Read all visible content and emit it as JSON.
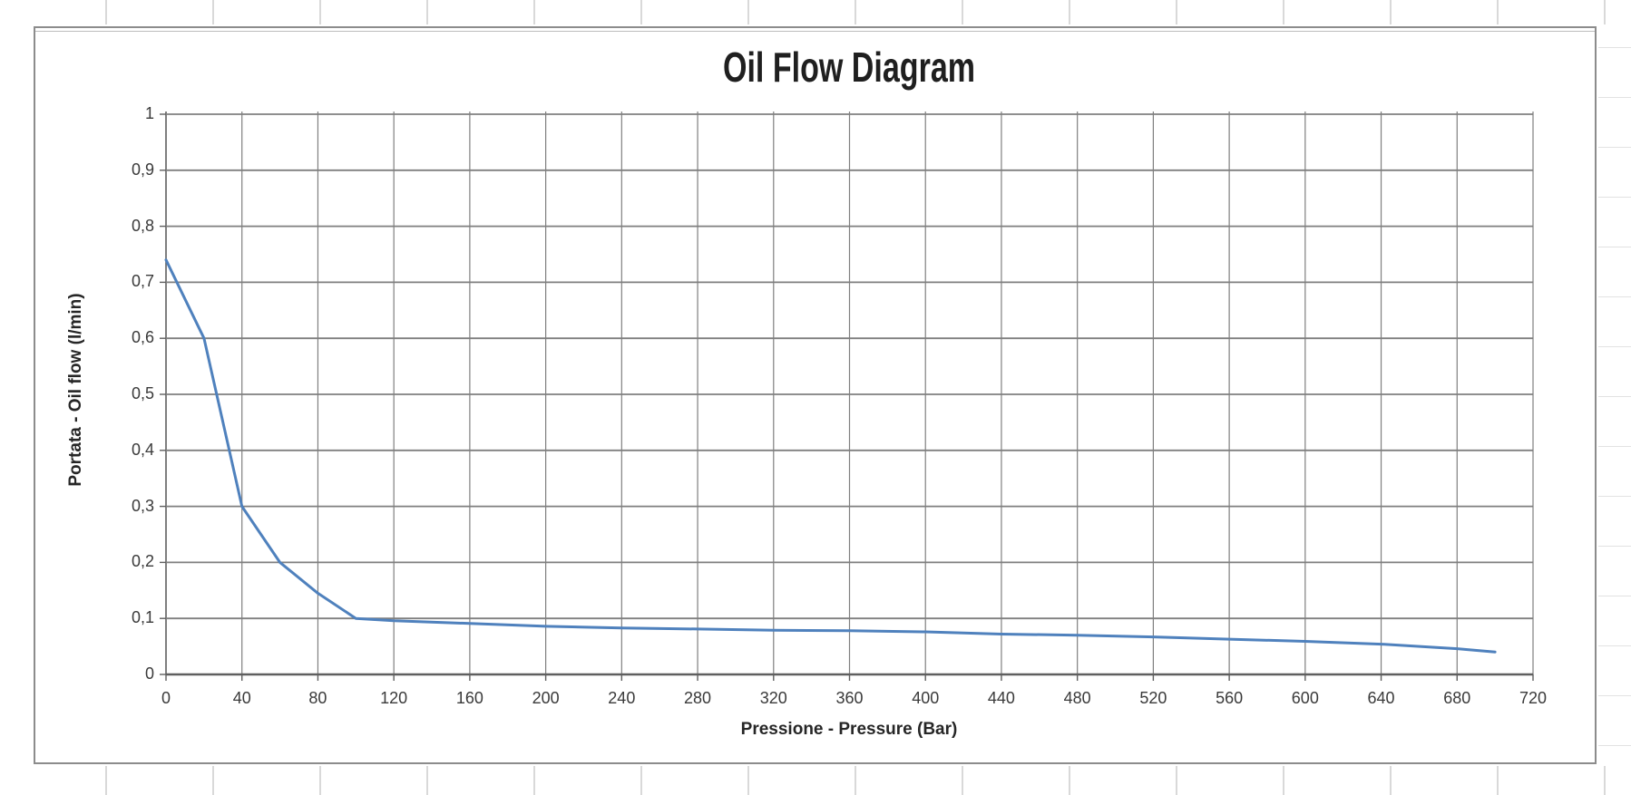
{
  "chart_data": {
    "type": "line",
    "title": "Oil Flow Diagram",
    "xlabel": "Pressione - Pressure (Bar)",
    "ylabel": "Portata - Oil flow (l/min)",
    "xlim": [
      0,
      720
    ],
    "ylim": [
      0,
      1
    ],
    "x_tick_step": 40,
    "y_tick_step": 0.1,
    "x_ticks": [
      0,
      40,
      80,
      120,
      160,
      200,
      240,
      280,
      320,
      360,
      400,
      440,
      480,
      520,
      560,
      600,
      640,
      680,
      720
    ],
    "y_ticks": [
      0,
      0.1,
      0.2,
      0.3,
      0.4,
      0.5,
      0.6,
      0.7,
      0.8,
      0.9,
      1
    ],
    "y_tick_labels": [
      "0",
      "0,1",
      "0,2",
      "0,3",
      "0,4",
      "0,5",
      "0,6",
      "0,7",
      "0,8",
      "0,9",
      "1"
    ],
    "decimal_separator": ",",
    "grid": true,
    "legend": false,
    "series": [
      {
        "name": "Oil flow",
        "color": "#4f81bd",
        "points": [
          [
            0,
            0.74
          ],
          [
            20,
            0.6
          ],
          [
            40,
            0.3
          ],
          [
            60,
            0.2
          ],
          [
            80,
            0.145
          ],
          [
            100,
            0.1
          ],
          [
            120,
            0.096
          ],
          [
            160,
            0.091
          ],
          [
            200,
            0.086
          ],
          [
            240,
            0.083
          ],
          [
            280,
            0.081
          ],
          [
            320,
            0.079
          ],
          [
            360,
            0.078
          ],
          [
            400,
            0.076
          ],
          [
            440,
            0.072
          ],
          [
            480,
            0.07
          ],
          [
            520,
            0.067
          ],
          [
            560,
            0.063
          ],
          [
            600,
            0.059
          ],
          [
            640,
            0.054
          ],
          [
            680,
            0.046
          ],
          [
            700,
            0.04
          ]
        ]
      }
    ],
    "colors": {
      "grid": "#7f7f7f",
      "axis": "#5f5f5f",
      "tick_text": "#3a3a3a",
      "title_text": "#1f1f1f"
    }
  }
}
